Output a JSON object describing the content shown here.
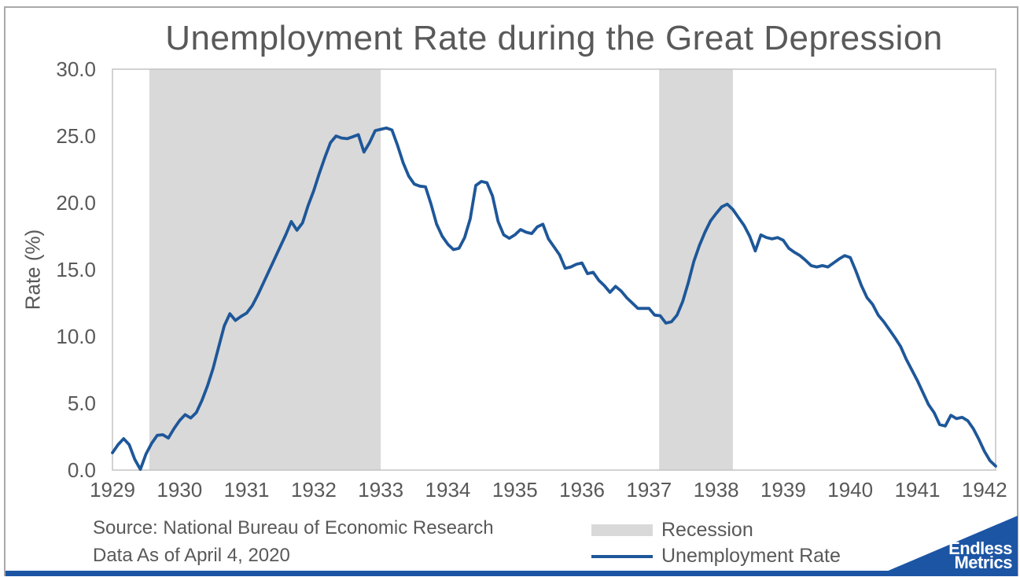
{
  "chart_data": {
    "type": "line",
    "title": "Unemployment Rate during the Great Depression",
    "xlabel": "",
    "ylabel": "Rate (%)",
    "ylim": [
      0,
      30
    ],
    "y_tick_labels": [
      "0.0",
      "5.0",
      "10.0",
      "15.0",
      "20.0",
      "25.0",
      "30.0"
    ],
    "x_ticks": [
      1929,
      1930,
      1931,
      1932,
      1933,
      1934,
      1935,
      1936,
      1937,
      1938,
      1939,
      1940,
      1941,
      1942
    ],
    "x_start": 1929.0,
    "x_end": 1942.1667,
    "points_per_year": 12,
    "grid": false,
    "legend_position": "bottom",
    "recession_spans": [
      [
        1929.55,
        1933.0
      ],
      [
        1937.15,
        1938.25
      ]
    ],
    "series": [
      {
        "name": "Unemployment Rate",
        "values": [
          1.3,
          1.9,
          2.35,
          1.9,
          0.8,
          0.05,
          1.2,
          2.0,
          2.6,
          2.65,
          2.4,
          3.1,
          3.7,
          4.15,
          3.9,
          4.3,
          5.2,
          6.3,
          7.6,
          9.2,
          10.8,
          11.7,
          11.2,
          11.5,
          11.75,
          12.3,
          13.1,
          14.0,
          14.9,
          15.8,
          16.7,
          17.6,
          18.6,
          17.95,
          18.5,
          19.8,
          20.9,
          22.2,
          23.4,
          24.5,
          25.0,
          24.85,
          24.8,
          24.95,
          25.1,
          23.8,
          24.5,
          25.4,
          25.5,
          25.6,
          25.45,
          24.3,
          23.0,
          22.0,
          21.4,
          21.25,
          21.2,
          19.9,
          18.4,
          17.5,
          16.9,
          16.5,
          16.6,
          17.4,
          18.8,
          21.3,
          21.6,
          21.5,
          20.5,
          18.6,
          17.6,
          17.35,
          17.6,
          18.0,
          17.8,
          17.7,
          18.2,
          18.4,
          17.3,
          16.7,
          16.1,
          15.1,
          15.2,
          15.4,
          15.5,
          14.7,
          14.8,
          14.2,
          13.8,
          13.3,
          13.75,
          13.4,
          12.9,
          12.5,
          12.1,
          12.1,
          12.1,
          11.6,
          11.55,
          11.0,
          11.1,
          11.6,
          12.6,
          14.0,
          15.6,
          16.8,
          17.8,
          18.65,
          19.2,
          19.7,
          19.9,
          19.5,
          18.9,
          18.3,
          17.5,
          16.4,
          17.6,
          17.4,
          17.3,
          17.4,
          17.2,
          16.6,
          16.3,
          16.05,
          15.7,
          15.3,
          15.2,
          15.3,
          15.2,
          15.5,
          15.8,
          16.05,
          15.9,
          14.9,
          13.8,
          12.9,
          12.4,
          11.6,
          11.1,
          10.5,
          9.9,
          9.25,
          8.3,
          7.5,
          6.7,
          5.8,
          4.9,
          4.3,
          3.4,
          3.3,
          4.1,
          3.85,
          3.95,
          3.7,
          3.1,
          2.3,
          1.4,
          0.7,
          0.3
        ]
      }
    ]
  },
  "legend": {
    "recession_label": "Recession",
    "line_label": "Unemployment Rate"
  },
  "footer": {
    "source_line1": "Source: National Bureau of Economic Research",
    "source_line2": "Data As of April 4, 2020"
  },
  "logo": {
    "line1": "Endless",
    "line2": "Metrics"
  },
  "colors": {
    "line": "#1E5799",
    "recession_band": "#D9D9D9",
    "text": "#595959",
    "plot_border": "#C3C3C3",
    "frame_border": "#A9A9A9",
    "logo_blue": "#1D55A5",
    "background": "#FFFFFF"
  }
}
